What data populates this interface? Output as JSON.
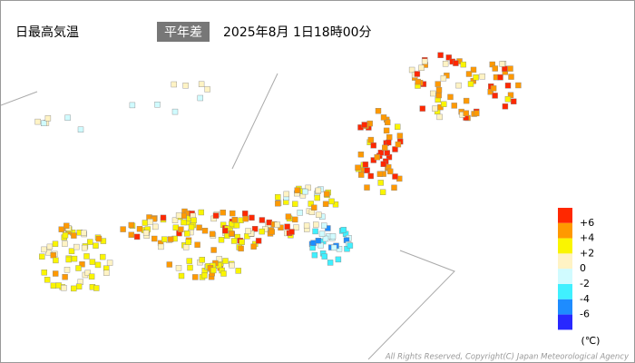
{
  "header": {
    "title": "日最高気温",
    "badge": "平年差",
    "timestamp": "2025年8月 1日18時00分"
  },
  "legend": {
    "labels": [
      "+6",
      "+4",
      "+2",
      "0",
      "-2",
      "-4",
      "-6"
    ],
    "colors": [
      "#ff2800",
      "#ff9900",
      "#faf500",
      "#fff3c4",
      "#d0fbff",
      "#40f0ff",
      "#1e8cff",
      "#2828ff"
    ],
    "unit": "(℃)"
  },
  "footer": {
    "copyright": "All Rights Reserved, Copyright(C) Japan Meteorological Agency"
  }
}
